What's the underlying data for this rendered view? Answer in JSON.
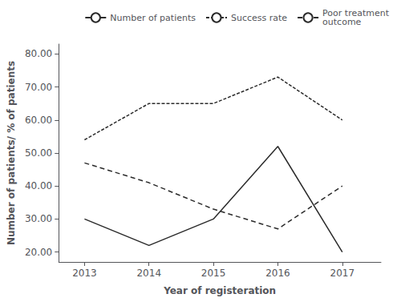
{
  "chart_data": {
    "type": "line",
    "x": [
      2013,
      2014,
      2015,
      2016,
      2017
    ],
    "series": [
      {
        "name": "Number of patients",
        "color": "#2b2b2b",
        "line_style": "solid",
        "values": [
          30.0,
          22.0,
          30.0,
          52.0,
          20.0
        ]
      },
      {
        "name": "Success rate",
        "color": "#2b2b2b",
        "line_style": "short_dash",
        "values": [
          54.0,
          65.0,
          65.0,
          73.0,
          60.0
        ]
      },
      {
        "name": "Poor treatment\noutcome",
        "color": "#2b2b2b",
        "line_style": "long_dash",
        "values": [
          47.0,
          41.0,
          33.0,
          27.0,
          40.0
        ]
      }
    ],
    "xlabel": "Year of registeration",
    "ylabel": "Number of patients/ % of patients",
    "xlim": [
      2012.6,
      2017.6
    ],
    "xticks": [
      2013,
      2014,
      2015,
      2016,
      2017
    ],
    "ylim": [
      17.0,
      83.0
    ],
    "yticks": [
      {
        "value": 20.0,
        "label": "20.00"
      },
      {
        "value": 30.0,
        "label": "30.00"
      },
      {
        "value": 40.0,
        "label": "40.00"
      },
      {
        "value": 50.0,
        "label": "50.00"
      },
      {
        "value": 60.0,
        "label": "60.00"
      },
      {
        "value": 70.0,
        "label": "70.00"
      },
      {
        "value": 80.0,
        "label": "80.00"
      }
    ],
    "grid": false,
    "legend": "upper right"
  }
}
